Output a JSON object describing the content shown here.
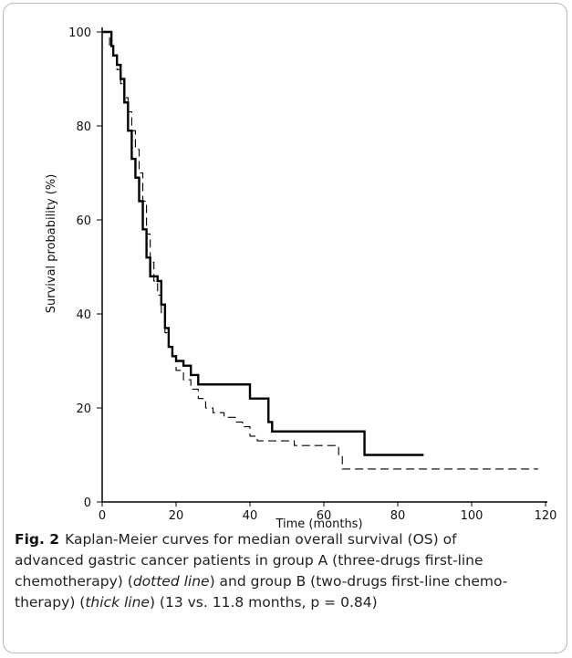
{
  "chart_data": {
    "type": "line",
    "xlabel": "Time (months)",
    "ylabel": "Survival probability (%)",
    "xlim": [
      0,
      120
    ],
    "ylim": [
      0,
      100
    ],
    "x_ticks": [
      0,
      20,
      40,
      60,
      80,
      100,
      120
    ],
    "y_ticks": [
      0,
      20,
      40,
      60,
      80,
      100
    ],
    "step": true,
    "grid": false,
    "series": [
      {
        "style": "dotted",
        "color": "#000000",
        "points": [
          [
            0,
            100
          ],
          [
            1.5,
            100
          ],
          [
            2,
            97
          ],
          [
            3,
            95
          ],
          [
            4,
            92
          ],
          [
            5,
            89
          ],
          [
            6,
            86
          ],
          [
            7,
            83
          ],
          [
            8,
            79
          ],
          [
            9,
            75
          ],
          [
            10,
            70
          ],
          [
            11,
            64
          ],
          [
            12,
            57
          ],
          [
            13,
            51
          ],
          [
            14,
            47
          ],
          [
            15,
            44
          ],
          [
            16,
            40
          ],
          [
            17,
            36
          ],
          [
            18,
            33
          ],
          [
            19,
            31
          ],
          [
            20,
            28
          ],
          [
            22,
            26
          ],
          [
            24,
            24
          ],
          [
            26,
            22
          ],
          [
            28,
            20
          ],
          [
            30,
            19
          ],
          [
            33,
            18
          ],
          [
            36,
            17
          ],
          [
            38,
            16
          ],
          [
            40,
            14
          ],
          [
            42,
            13
          ],
          [
            50,
            13
          ],
          [
            52,
            12
          ],
          [
            62,
            12
          ],
          [
            64,
            10
          ],
          [
            65,
            7
          ],
          [
            118,
            7
          ]
        ]
      },
      {
        "style": "thick",
        "color": "#000000",
        "points": [
          [
            0,
            100
          ],
          [
            2,
            100
          ],
          [
            2.5,
            97
          ],
          [
            3,
            95
          ],
          [
            4,
            93
          ],
          [
            5,
            90
          ],
          [
            6,
            85
          ],
          [
            7,
            79
          ],
          [
            8,
            73
          ],
          [
            9,
            69
          ],
          [
            10,
            64
          ],
          [
            11,
            58
          ],
          [
            12,
            52
          ],
          [
            13,
            48
          ],
          [
            15,
            47
          ],
          [
            16,
            42
          ],
          [
            17,
            37
          ],
          [
            18,
            33
          ],
          [
            19,
            31
          ],
          [
            20,
            30
          ],
          [
            22,
            29
          ],
          [
            24,
            27
          ],
          [
            26,
            25
          ],
          [
            39,
            25
          ],
          [
            40,
            22
          ],
          [
            44,
            22
          ],
          [
            45,
            17
          ],
          [
            46,
            15
          ],
          [
            70,
            15
          ],
          [
            71,
            10
          ],
          [
            87,
            10
          ]
        ]
      }
    ]
  },
  "caption": {
    "fig_label": "Fig. 2",
    "line1": "Kaplan-Meier curves for median overall survival (OS) of",
    "line2": "advanced gastric cancer patients in group A (three-drugs first-line",
    "line3_a": "chemotherapy) (",
    "line3_dotted": "dotted line",
    "line3_b": ") and group B (two-drugs first-line chemo-",
    "line4_a": "therapy) (",
    "line4_thick": "thick line",
    "line4_b": ") (13 vs. 11.8 months, p = 0.84)"
  }
}
